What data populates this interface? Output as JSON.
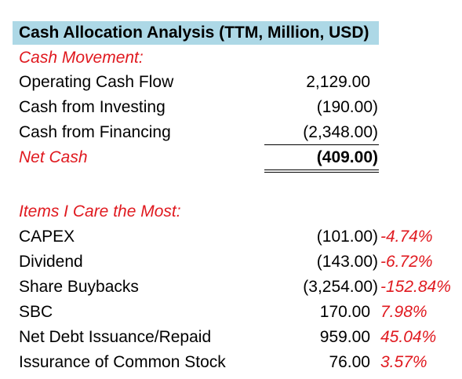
{
  "title": "Cash Allocation Analysis (TTM, Million, USD)",
  "cash_movement": {
    "header": "Cash Movement:",
    "rows": [
      {
        "label": "Operating Cash Flow",
        "value": "2,129.00"
      },
      {
        "label": "Cash from Investing",
        "value": "(190.00)"
      },
      {
        "label": "Cash from Financing",
        "value": "(2,348.00)"
      }
    ],
    "net": {
      "label": "Net Cash",
      "value": "(409.00)"
    }
  },
  "items": {
    "header": "Items I Care the Most:",
    "rows": [
      {
        "label": "CAPEX",
        "value": "(101.00)",
        "pct": "-4.74%"
      },
      {
        "label": "Dividend",
        "value": "(143.00)",
        "pct": "-6.72%"
      },
      {
        "label": "Share Buybacks",
        "value": "(3,254.00)",
        "pct": "-152.84%"
      },
      {
        "label": "SBC",
        "value": "170.00",
        "pct": "7.98%"
      },
      {
        "label": "Net Debt Issuance/Repaid",
        "value": "959.00",
        "pct": "45.04%"
      },
      {
        "label": "Issurance of Common Stock",
        "value": "76.00",
        "pct": "3.57%"
      }
    ]
  },
  "colors": {
    "title_background": "#add8e6",
    "accent_red": "#e0191f"
  }
}
